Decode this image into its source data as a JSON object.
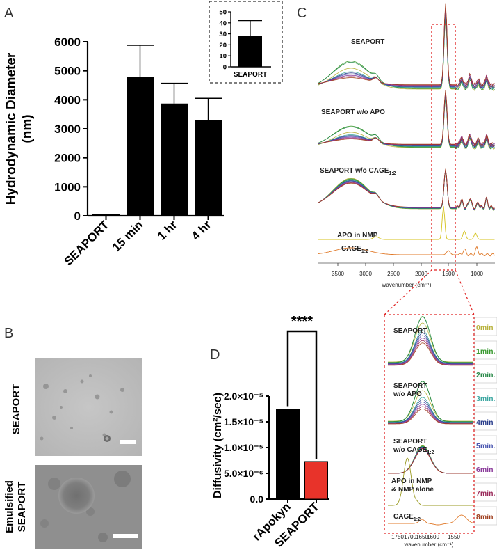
{
  "panels": {
    "a": "A",
    "b": "B",
    "c": "C",
    "d": "D"
  },
  "colors": {
    "bar": "#000000",
    "seaport_red": "#e8332a",
    "frame_dash": "#e02020"
  },
  "chart_data": [
    {
      "id": "A",
      "type": "bar",
      "categories": [
        "SEAPORT",
        "15 min",
        "1 hr",
        "4 hr"
      ],
      "values": [
        28,
        4780,
        3870,
        3300
      ],
      "errors": [
        14,
        1100,
        700,
        750
      ],
      "ylabel": "Hydrodynamic Diameter (nm)",
      "ylabel_lines": [
        "Hydrodynamic Diameter",
        "(nm)"
      ],
      "ylim": [
        0,
        6000
      ],
      "yticks": [
        0,
        1000,
        2000,
        3000,
        4000,
        5000,
        6000
      ],
      "inset": {
        "type": "bar",
        "categories": [
          "SEAPORT"
        ],
        "values": [
          28
        ],
        "errors": [
          14
        ],
        "ylim": [
          0,
          50
        ],
        "yticks": [
          0,
          10,
          20,
          30,
          40,
          50
        ]
      }
    },
    {
      "id": "D",
      "type": "bar",
      "categories": [
        "rApokyn",
        "SEAPORT"
      ],
      "values": [
        1.75e-05,
        7.3e-06
      ],
      "bar_colors": [
        "#000000",
        "#e8332a"
      ],
      "ylabel": "Diffusivity (cm²/sec)",
      "ylim": [
        0,
        2e-05
      ],
      "yticks": [
        0,
        5e-06,
        1e-05,
        1.5e-05,
        2e-05
      ],
      "ytick_labels": [
        "0.0",
        "5.0×10⁻⁶",
        "1.0×10⁻⁵",
        "1.5×10⁻⁵",
        "2.0×10⁻⁵"
      ],
      "significance": "****"
    },
    {
      "id": "C",
      "type": "line",
      "xlabel": "wavenumber (cm⁻¹)",
      "xticks": [
        "3500",
        "3000",
        "2500",
        "2000",
        "1500",
        "1000"
      ],
      "traces": [
        "SEAPORT",
        "SEAPORT w/o APO",
        "SEAPORT w/o CAGE",
        "APO in NMP",
        "CAGE"
      ],
      "zoom": {
        "xlabel": "wavenumber (cm⁻¹)",
        "xticks": [
          "1750",
          "1700",
          "1650",
          "1600",
          "1550"
        ],
        "traces": [
          "SEAPORT",
          "SEAPORT w/o APO",
          "SEAPORT w/o CAGE",
          "APO in NMP & NMP alone",
          "CAGE"
        ]
      },
      "legend": [
        {
          "label": "0min",
          "color": "#b8b23c"
        },
        {
          "label": "1min.",
          "color": "#3a9a30"
        },
        {
          "label": "2min.",
          "color": "#2a8a4a"
        },
        {
          "label": "3min.",
          "color": "#3aa6a0"
        },
        {
          "label": "4min",
          "color": "#2a3e8c"
        },
        {
          "label": "5min.",
          "color": "#4a56b0"
        },
        {
          "label": "6min",
          "color": "#8a3a9a"
        },
        {
          "label": "7min.",
          "color": "#9a2a5a"
        },
        {
          "label": "8min",
          "color": "#a04020"
        }
      ]
    }
  ],
  "panelB": {
    "top_label": "SEAPORT",
    "bottom_label_1": "Emulsified",
    "bottom_label_2": "SEAPORT"
  },
  "spectra_labels": {
    "seaport": "SEAPORT",
    "wo_apo": "SEAPORT w/o APO",
    "wo_cage": "SEAPORT w/o CAGE",
    "cage_sub": "1:2",
    "apo_nmp": "APO in NMP",
    "cage": "CAGE",
    "z_seaport": "SEAPORT",
    "z_wo_apo_1": "SEAPORT",
    "z_wo_apo_2": "w/o APO",
    "z_wo_cage_1": "SEAPORT",
    "z_wo_cage_2": "w/o CAGE",
    "z_apo_1": "APO in NMP",
    "z_apo_2": "& NMP alone",
    "z_cage": "CAGE"
  }
}
